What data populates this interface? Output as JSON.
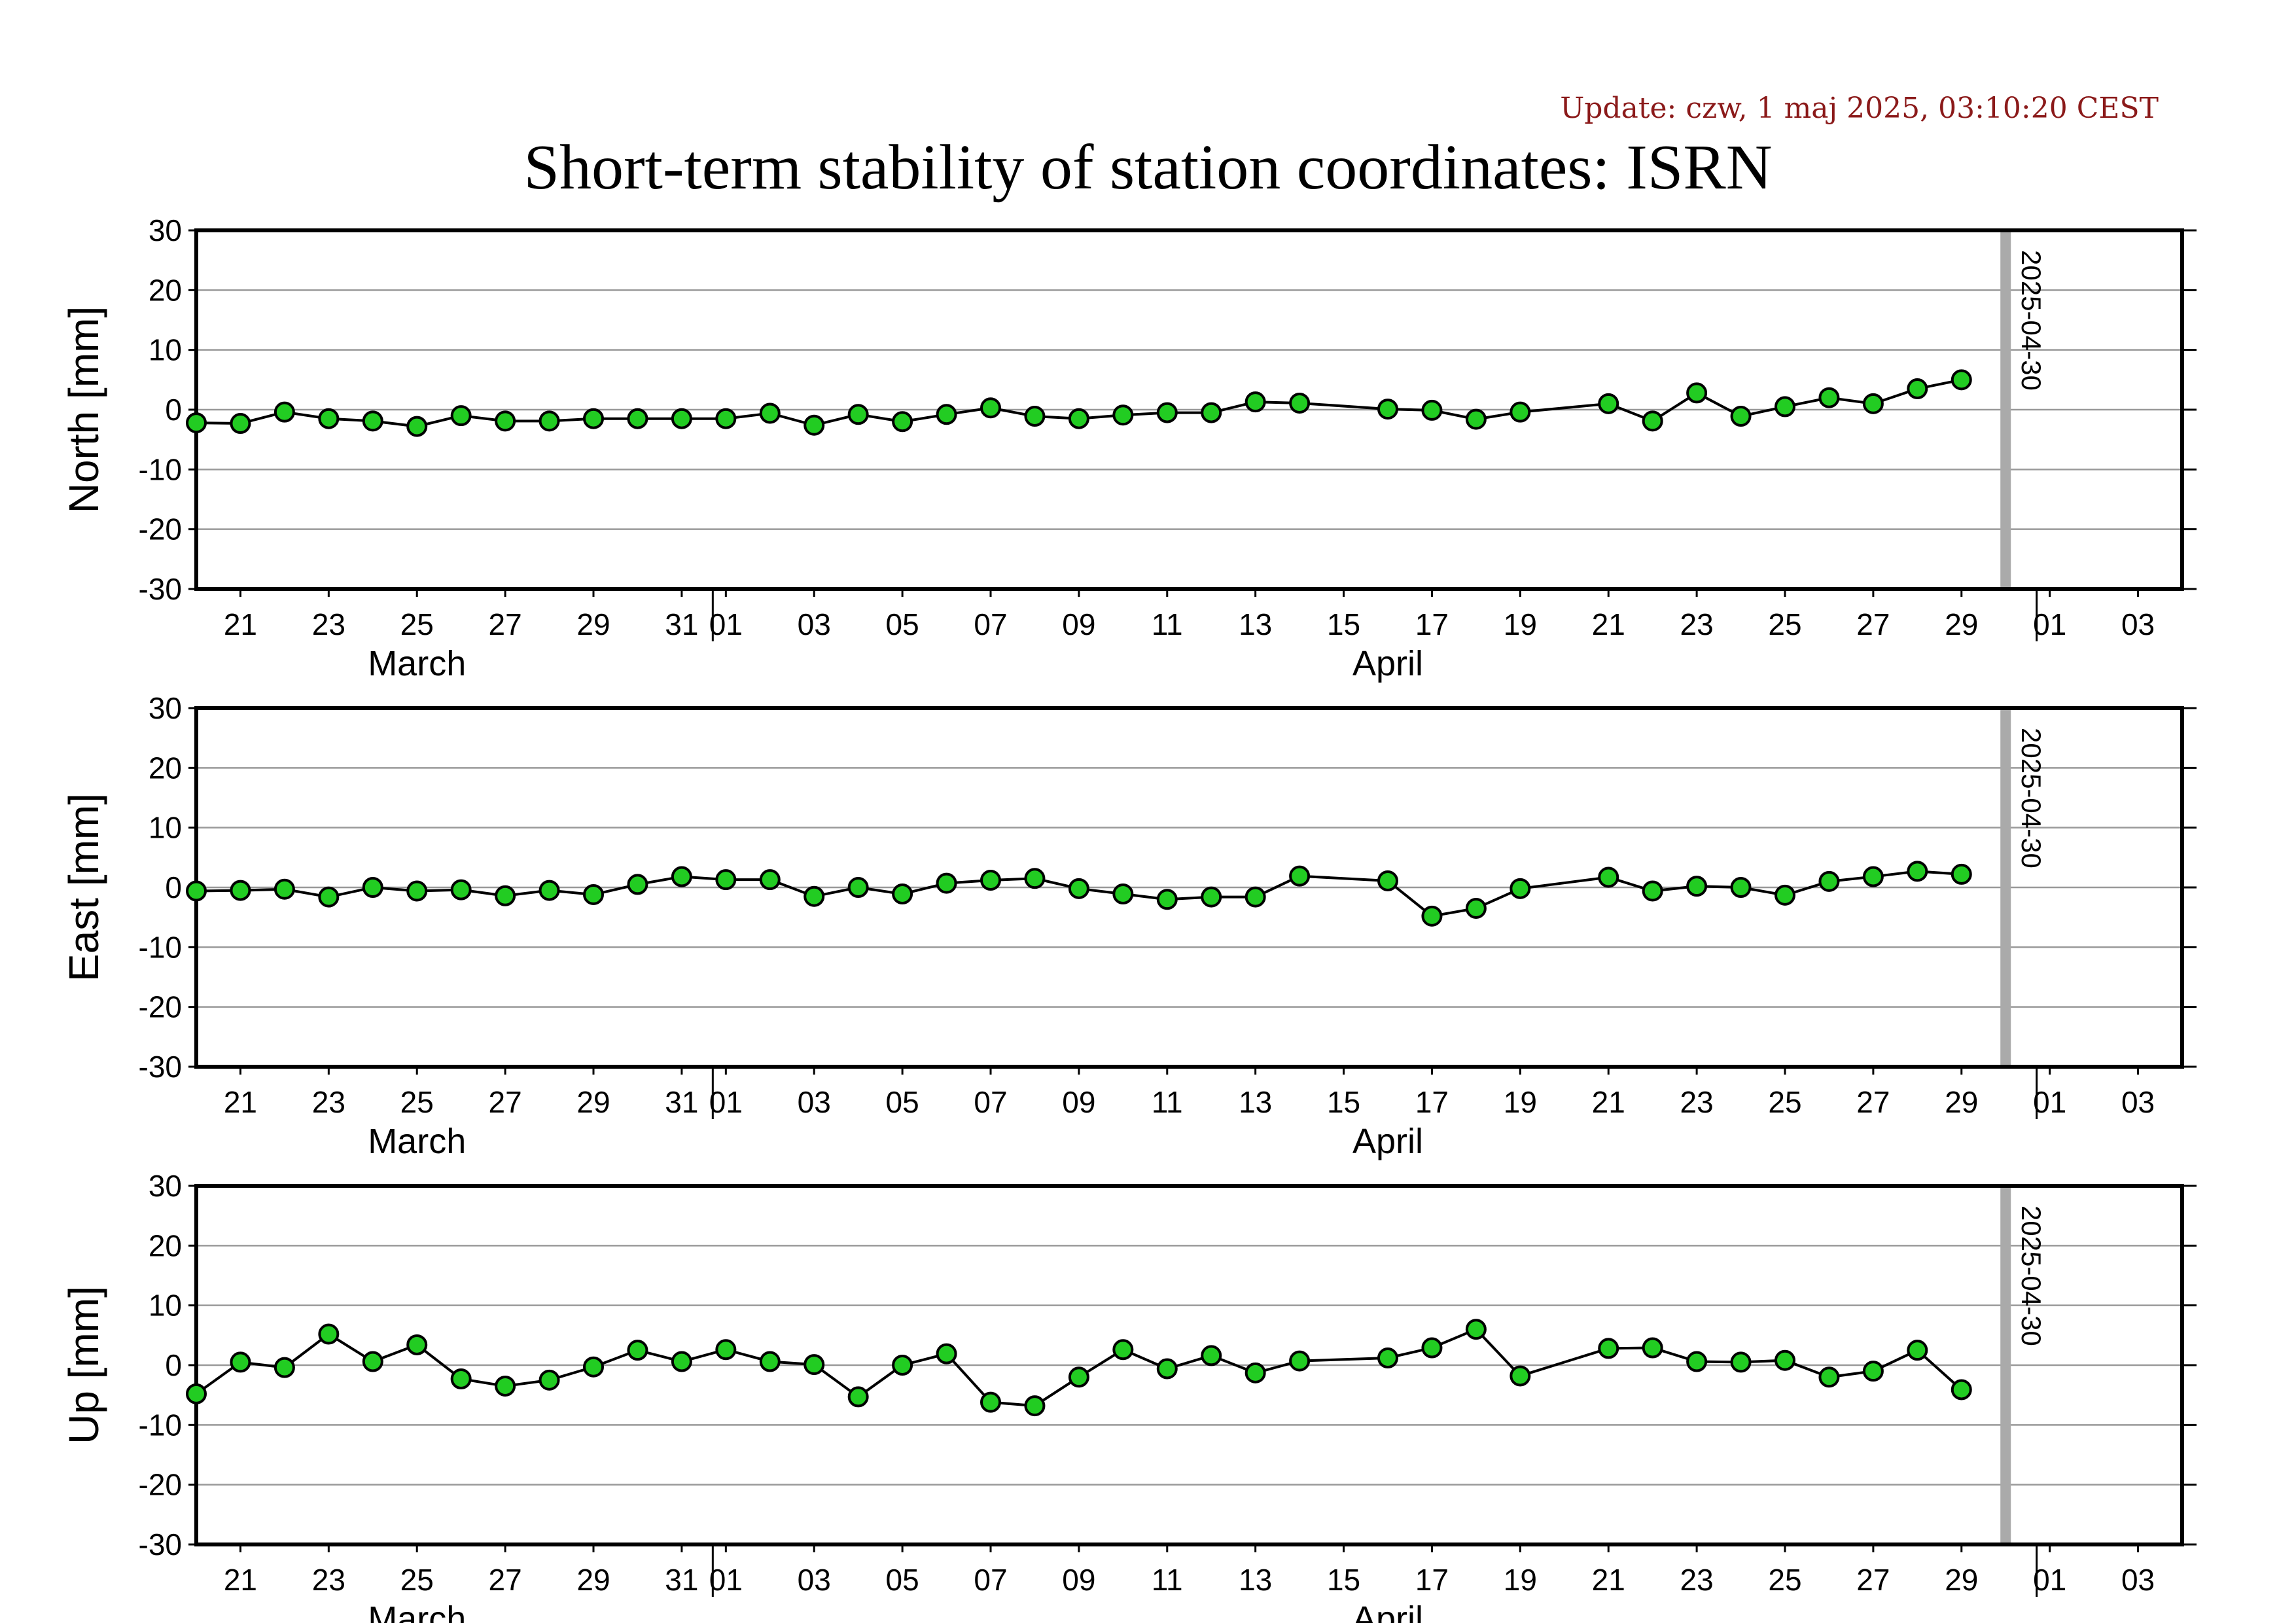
{
  "update_text": "Update: czw, 1 maj 2025, 03:10:20 CEST",
  "title": "Short-term stability of station coordinates: ISRN",
  "colors": {
    "marker_fill": "#22cc22",
    "marker_stroke": "#000000",
    "grid": "#999999",
    "marker_line": "#aaaaaa",
    "update_text": "#8b1a1a"
  },
  "x_axis": {
    "start": "2025-03-20",
    "end": "2025-05-04",
    "date_ticks": [
      {
        "date": "2025-03-21",
        "label": "21"
      },
      {
        "date": "2025-03-23",
        "label": "23"
      },
      {
        "date": "2025-03-25",
        "label": "25"
      },
      {
        "date": "2025-03-27",
        "label": "27"
      },
      {
        "date": "2025-03-29",
        "label": "29"
      },
      {
        "date": "2025-03-31",
        "label": "31"
      },
      {
        "date": "2025-04-01",
        "label": "01"
      },
      {
        "date": "2025-04-03",
        "label": "03"
      },
      {
        "date": "2025-04-05",
        "label": "05"
      },
      {
        "date": "2025-04-07",
        "label": "07"
      },
      {
        "date": "2025-04-09",
        "label": "09"
      },
      {
        "date": "2025-04-11",
        "label": "11"
      },
      {
        "date": "2025-04-13",
        "label": "13"
      },
      {
        "date": "2025-04-15",
        "label": "15"
      },
      {
        "date": "2025-04-17",
        "label": "17"
      },
      {
        "date": "2025-04-19",
        "label": "19"
      },
      {
        "date": "2025-04-21",
        "label": "21"
      },
      {
        "date": "2025-04-23",
        "label": "23"
      },
      {
        "date": "2025-04-25",
        "label": "25"
      },
      {
        "date": "2025-04-27",
        "label": "27"
      },
      {
        "date": "2025-04-29",
        "label": "29"
      },
      {
        "date": "2025-05-01",
        "label": "01"
      },
      {
        "date": "2025-05-03",
        "label": "03"
      }
    ],
    "month_boundaries": [
      "2025-04-01",
      "2025-05-01"
    ],
    "month_labels": [
      {
        "date": "2025-03-25",
        "label": "March"
      },
      {
        "date": "2025-04-16",
        "label": "April"
      }
    ]
  },
  "chart_data": [
    {
      "type": "line",
      "ylabel": "North [mm]",
      "ylim": [
        -30,
        30
      ],
      "yticks": [
        30,
        20,
        10,
        0,
        -10,
        -20,
        -30
      ],
      "grid": true,
      "marker_date": "2025-04-30",
      "marker_label": "2025-04-30",
      "series": [
        {
          "x": [
            "2025-03-20",
            "2025-03-21",
            "2025-03-22",
            "2025-03-23",
            "2025-03-24",
            "2025-03-25",
            "2025-03-26",
            "2025-03-27",
            "2025-03-28",
            "2025-03-29",
            "2025-03-30",
            "2025-03-31",
            "2025-04-01",
            "2025-04-02",
            "2025-04-03",
            "2025-04-04",
            "2025-04-05",
            "2025-04-06",
            "2025-04-07",
            "2025-04-08",
            "2025-04-09",
            "2025-04-10",
            "2025-04-11",
            "2025-04-12",
            "2025-04-13",
            "2025-04-14",
            "2025-04-16",
            "2025-04-17",
            "2025-04-18",
            "2025-04-19",
            "2025-04-21",
            "2025-04-22",
            "2025-04-23",
            "2025-04-24",
            "2025-04-25",
            "2025-04-26",
            "2025-04-27",
            "2025-04-28",
            "2025-04-29"
          ],
          "y": [
            -2.2,
            -2.3,
            -0.4,
            -1.5,
            -1.9,
            -2.8,
            -1.0,
            -1.9,
            -1.9,
            -1.5,
            -1.5,
            -1.5,
            -1.5,
            -0.6,
            -2.6,
            -0.8,
            -2.0,
            -0.8,
            0.3,
            -1.1,
            -1.5,
            -0.9,
            -0.5,
            -0.5,
            1.3,
            1.1,
            0.1,
            -0.1,
            -1.6,
            -0.4,
            1.0,
            -1.9,
            2.8,
            -1.1,
            0.5,
            2.0,
            1.0,
            3.5,
            5.0
          ]
        }
      ]
    },
    {
      "type": "line",
      "ylabel": "East [mm]",
      "ylim": [
        -30,
        30
      ],
      "yticks": [
        30,
        20,
        10,
        0,
        -10,
        -20,
        -30
      ],
      "grid": true,
      "marker_date": "2025-04-30",
      "marker_label": "2025-04-30",
      "series": [
        {
          "x": [
            "2025-03-20",
            "2025-03-21",
            "2025-03-22",
            "2025-03-23",
            "2025-03-24",
            "2025-03-25",
            "2025-03-26",
            "2025-03-27",
            "2025-03-28",
            "2025-03-29",
            "2025-03-30",
            "2025-03-31",
            "2025-04-01",
            "2025-04-02",
            "2025-04-03",
            "2025-04-04",
            "2025-04-05",
            "2025-04-06",
            "2025-04-07",
            "2025-04-08",
            "2025-04-09",
            "2025-04-10",
            "2025-04-11",
            "2025-04-12",
            "2025-04-13",
            "2025-04-14",
            "2025-04-16",
            "2025-04-17",
            "2025-04-18",
            "2025-04-19",
            "2025-04-21",
            "2025-04-22",
            "2025-04-23",
            "2025-04-24",
            "2025-04-25",
            "2025-04-26",
            "2025-04-27",
            "2025-04-28",
            "2025-04-29"
          ],
          "y": [
            -0.6,
            -0.5,
            -0.3,
            -1.6,
            0.0,
            -0.6,
            -0.4,
            -1.4,
            -0.5,
            -1.2,
            0.5,
            1.8,
            1.3,
            1.3,
            -1.5,
            0.0,
            -1.1,
            0.7,
            1.2,
            1.5,
            -0.2,
            -1.1,
            -2.0,
            -1.6,
            -1.6,
            1.9,
            1.1,
            -4.8,
            -3.5,
            -0.2,
            1.7,
            -0.6,
            0.2,
            0.0,
            -1.3,
            1.0,
            1.8,
            2.7,
            2.2
          ]
        }
      ]
    },
    {
      "type": "line",
      "ylabel": "Up [mm]",
      "ylim": [
        -30,
        30
      ],
      "yticks": [
        30,
        20,
        10,
        0,
        -10,
        -20,
        -30
      ],
      "grid": true,
      "marker_date": "2025-04-30",
      "marker_label": "2025-04-30",
      "series": [
        {
          "x": [
            "2025-03-20",
            "2025-03-21",
            "2025-03-22",
            "2025-03-23",
            "2025-03-24",
            "2025-03-25",
            "2025-03-26",
            "2025-03-27",
            "2025-03-28",
            "2025-03-29",
            "2025-03-30",
            "2025-03-31",
            "2025-04-01",
            "2025-04-02",
            "2025-04-03",
            "2025-04-04",
            "2025-04-05",
            "2025-04-06",
            "2025-04-07",
            "2025-04-08",
            "2025-04-09",
            "2025-04-10",
            "2025-04-11",
            "2025-04-12",
            "2025-04-13",
            "2025-04-14",
            "2025-04-16",
            "2025-04-17",
            "2025-04-18",
            "2025-04-19",
            "2025-04-21",
            "2025-04-22",
            "2025-04-23",
            "2025-04-24",
            "2025-04-25",
            "2025-04-26",
            "2025-04-27",
            "2025-04-28",
            "2025-04-29"
          ],
          "y": [
            -4.8,
            0.5,
            -0.4,
            5.2,
            0.6,
            3.4,
            -2.3,
            -3.5,
            -2.5,
            -0.3,
            2.5,
            0.6,
            2.6,
            0.6,
            0.1,
            -5.3,
            0.0,
            1.9,
            -6.2,
            -6.8,
            -2.0,
            2.6,
            -0.6,
            1.6,
            -1.3,
            0.7,
            1.2,
            2.9,
            6.0,
            -1.8,
            2.8,
            2.9,
            0.6,
            0.5,
            0.8,
            -2.0,
            -1.0,
            2.5,
            -4.1
          ]
        }
      ]
    }
  ]
}
